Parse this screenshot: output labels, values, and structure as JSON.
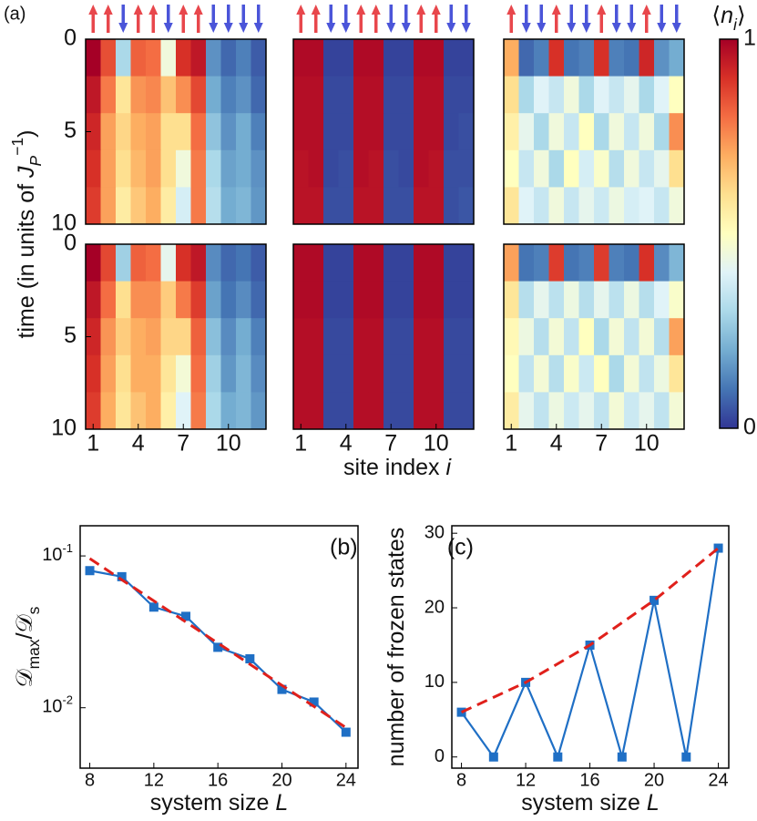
{
  "chart_data": [
    {
      "type": "heatmap",
      "panel_label": "(a)",
      "y_label": [
        {
          "text": "time (in units of  "
        },
        {
          "text": "J",
          "italic": true
        },
        {
          "text": "P",
          "shift": "sub",
          "italic": true
        },
        {
          "text": "−1",
          "shift": "super"
        },
        {
          "text": ")"
        }
      ],
      "x_label": [
        {
          "text": "site index  "
        },
        {
          "text": "i",
          "italic": true
        }
      ],
      "colorbar_label": [
        {
          "text": "⟨"
        },
        {
          "text": "n",
          "italic": true
        },
        {
          "text": "i",
          "shift": "sub",
          "italic": true
        },
        {
          "text": "⟩"
        }
      ],
      "clim": [
        0,
        1
      ],
      "cticks": [
        0,
        1
      ],
      "colormap": [
        "#313695",
        "#4575b4",
        "#74add1",
        "#abd9e9",
        "#e0f3f8",
        "#ffffbf",
        "#fee090",
        "#fdae61",
        "#f46d43",
        "#d73027",
        "#a50026"
      ],
      "xlim": [
        0.5,
        12.5
      ],
      "xticks": [
        1,
        4,
        7,
        10
      ],
      "ylim": [
        0,
        10
      ],
      "yticks": [
        0,
        5,
        10
      ],
      "up_color": "#e8474c",
      "down_color": "#4b55d9",
      "panels": [
        {
          "spins": [
            "up",
            "up",
            "down",
            "up",
            "up",
            "down",
            "up",
            "up",
            "down",
            "down",
            "down",
            "down"
          ],
          "values": [
            [
              1.0,
              0.85,
              0.3,
              0.82,
              0.8,
              0.45,
              0.9,
              0.95,
              0.15,
              0.08,
              0.12,
              0.06
            ],
            [
              0.95,
              0.78,
              0.58,
              0.74,
              0.76,
              0.66,
              0.75,
              0.86,
              0.2,
              0.12,
              0.15,
              0.08
            ],
            [
              0.92,
              0.72,
              0.62,
              0.7,
              0.72,
              0.6,
              0.6,
              0.8,
              0.25,
              0.15,
              0.2,
              0.12
            ],
            [
              0.9,
              0.72,
              0.6,
              0.68,
              0.72,
              0.6,
              0.45,
              0.78,
              0.3,
              0.18,
              0.2,
              0.15
            ],
            [
              0.88,
              0.72,
              0.56,
              0.65,
              0.7,
              0.56,
              0.38,
              0.78,
              0.32,
              0.2,
              0.22,
              0.16
            ]
          ]
        },
        {
          "spins": [
            "up",
            "up",
            "down",
            "down",
            "up",
            "up",
            "down",
            "down",
            "up",
            "up",
            "down",
            "down"
          ],
          "values": [
            [
              0.98,
              0.98,
              0.02,
              0.02,
              0.98,
              0.98,
              0.02,
              0.02,
              0.98,
              0.98,
              0.02,
              0.02
            ],
            [
              0.97,
              0.97,
              0.03,
              0.03,
              0.97,
              0.97,
              0.03,
              0.03,
              0.97,
              0.97,
              0.03,
              0.03
            ],
            [
              0.97,
              0.97,
              0.03,
              0.03,
              0.97,
              0.97,
              0.03,
              0.03,
              0.97,
              0.97,
              0.03,
              0.04
            ],
            [
              0.96,
              0.97,
              0.03,
              0.04,
              0.97,
              0.96,
              0.04,
              0.03,
              0.97,
              0.96,
              0.04,
              0.04
            ],
            [
              0.96,
              0.96,
              0.04,
              0.04,
              0.96,
              0.96,
              0.04,
              0.04,
              0.96,
              0.96,
              0.04,
              0.05
            ]
          ]
        },
        {
          "spins": [
            "up",
            "down",
            "down",
            "up",
            "down",
            "down",
            "up",
            "down",
            "down",
            "up",
            "down",
            "down"
          ],
          "values": [
            [
              0.7,
              0.08,
              0.12,
              0.9,
              0.1,
              0.12,
              0.9,
              0.12,
              0.1,
              0.92,
              0.15,
              0.2
            ],
            [
              0.6,
              0.3,
              0.4,
              0.35,
              0.45,
              0.3,
              0.4,
              0.35,
              0.42,
              0.3,
              0.4,
              0.5
            ],
            [
              0.55,
              0.42,
              0.3,
              0.45,
              0.35,
              0.5,
              0.3,
              0.45,
              0.35,
              0.45,
              0.3,
              0.75
            ],
            [
              0.5,
              0.35,
              0.45,
              0.3,
              0.5,
              0.38,
              0.48,
              0.32,
              0.45,
              0.35,
              0.42,
              0.6
            ],
            [
              0.58,
              0.4,
              0.35,
              0.45,
              0.35,
              0.42,
              0.36,
              0.44,
              0.38,
              0.4,
              0.35,
              0.45
            ]
          ]
        },
        {
          "values": [
            [
              1.0,
              0.86,
              0.28,
              0.82,
              0.8,
              0.42,
              0.9,
              0.95,
              0.14,
              0.08,
              0.1,
              0.06
            ],
            [
              0.95,
              0.8,
              0.6,
              0.75,
              0.75,
              0.64,
              0.78,
              0.88,
              0.18,
              0.1,
              0.14,
              0.08
            ],
            [
              0.92,
              0.74,
              0.64,
              0.7,
              0.72,
              0.62,
              0.62,
              0.82,
              0.24,
              0.14,
              0.2,
              0.12
            ],
            [
              0.9,
              0.72,
              0.6,
              0.7,
              0.7,
              0.58,
              0.46,
              0.8,
              0.28,
              0.16,
              0.22,
              0.14
            ],
            [
              0.88,
              0.7,
              0.58,
              0.66,
              0.7,
              0.55,
              0.4,
              0.78,
              0.3,
              0.2,
              0.22,
              0.16
            ]
          ]
        },
        {
          "values": [
            [
              0.98,
              0.98,
              0.02,
              0.02,
              0.98,
              0.98,
              0.02,
              0.02,
              0.98,
              0.98,
              0.02,
              0.02
            ],
            [
              0.98,
              0.98,
              0.02,
              0.02,
              0.98,
              0.98,
              0.02,
              0.02,
              0.98,
              0.98,
              0.02,
              0.02
            ],
            [
              0.97,
              0.97,
              0.03,
              0.03,
              0.97,
              0.97,
              0.03,
              0.03,
              0.97,
              0.97,
              0.03,
              0.03
            ],
            [
              0.97,
              0.97,
              0.03,
              0.03,
              0.97,
              0.97,
              0.03,
              0.03,
              0.97,
              0.97,
              0.03,
              0.03
            ],
            [
              0.97,
              0.97,
              0.03,
              0.03,
              0.97,
              0.97,
              0.03,
              0.03,
              0.97,
              0.97,
              0.03,
              0.03
            ]
          ]
        },
        {
          "values": [
            [
              0.72,
              0.1,
              0.12,
              0.88,
              0.1,
              0.12,
              0.88,
              0.12,
              0.1,
              0.9,
              0.14,
              0.22
            ],
            [
              0.58,
              0.32,
              0.42,
              0.33,
              0.44,
              0.32,
              0.42,
              0.33,
              0.44,
              0.32,
              0.4,
              0.48
            ],
            [
              0.52,
              0.44,
              0.32,
              0.46,
              0.34,
              0.5,
              0.3,
              0.46,
              0.34,
              0.46,
              0.32,
              0.72
            ],
            [
              0.5,
              0.34,
              0.46,
              0.32,
              0.48,
              0.36,
              0.5,
              0.3,
              0.46,
              0.34,
              0.44,
              0.58
            ],
            [
              0.56,
              0.42,
              0.34,
              0.44,
              0.36,
              0.42,
              0.34,
              0.46,
              0.36,
              0.42,
              0.34,
              0.46
            ]
          ]
        }
      ]
    },
    {
      "type": "line",
      "panel_label": "(b)",
      "y_label": [
        {
          "text": "𝒟"
        },
        {
          "text": "max",
          "shift": "sub"
        },
        {
          "text": "/𝒟"
        },
        {
          "text": "s",
          "shift": "sub"
        }
      ],
      "x_label": [
        {
          "text": "system size  "
        },
        {
          "text": "L",
          "italic": true
        }
      ],
      "log_y": true,
      "xlim": [
        7.4,
        24.75
      ],
      "xticks": [
        8,
        12,
        16,
        20,
        24
      ],
      "ylim": [
        0.004,
        0.158
      ],
      "yticks": [
        {
          "value": 0.01,
          "label": "10",
          "exponent": "-2"
        },
        {
          "value": 0.1,
          "label": "10",
          "exponent": "-1"
        }
      ],
      "series": [
        {
          "color": "#1f6fc5",
          "marker": "square",
          "x": [
            8,
            10,
            12,
            14,
            16,
            18,
            20,
            22,
            24
          ],
          "values": [
            0.08,
            0.073,
            0.046,
            0.04,
            0.025,
            0.021,
            0.0132,
            0.0109,
            0.0069
          ]
        },
        {
          "color": "#e0201b",
          "dash": true,
          "x": [
            8,
            24
          ],
          "values": [
            0.096,
            0.0074
          ]
        }
      ]
    },
    {
      "type": "line",
      "panel_label": "(c)",
      "y_label": [
        {
          "text": "number of frozen states"
        }
      ],
      "x_label": [
        {
          "text": "system size  "
        },
        {
          "text": "L",
          "italic": true
        }
      ],
      "log_y": false,
      "xlim": [
        7.4,
        24.65
      ],
      "xticks": [
        8,
        12,
        16,
        20,
        24
      ],
      "ylim": [
        -1.5,
        31
      ],
      "yticks": [
        0,
        10,
        20,
        30
      ],
      "series": [
        {
          "color": "#1f6fc5",
          "marker": "square",
          "x": [
            8,
            10,
            12,
            14,
            16,
            18,
            20,
            22,
            24
          ],
          "values": [
            6,
            0,
            10,
            0,
            15,
            0,
            21,
            0,
            28
          ]
        },
        {
          "color": "#e0201b",
          "dash": true,
          "x": [
            8,
            12,
            16,
            20,
            24
          ],
          "values": [
            6,
            10,
            15,
            21,
            28
          ]
        }
      ]
    }
  ]
}
